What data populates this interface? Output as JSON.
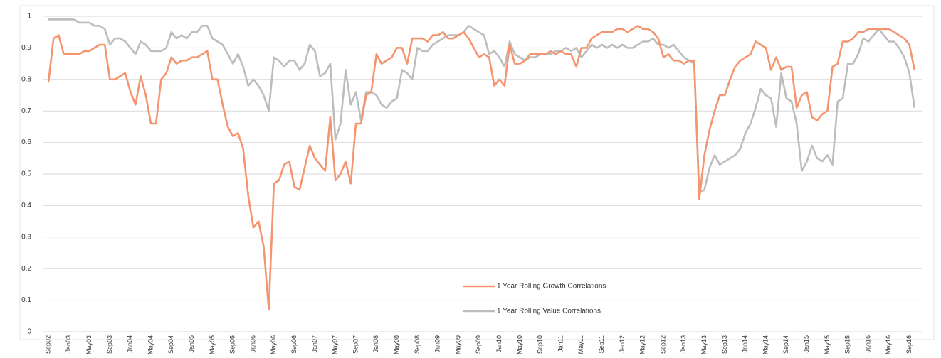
{
  "chart_data": {
    "type": "line",
    "categories": [
      "Sep02",
      null,
      null,
      null,
      "Jan03",
      null,
      null,
      null,
      "May03",
      null,
      null,
      null,
      "Sep03",
      null,
      null,
      null,
      "Jan04",
      null,
      null,
      null,
      "May04",
      null,
      null,
      null,
      "Sep04",
      null,
      null,
      null,
      "Jan05",
      null,
      null,
      null,
      "May05",
      null,
      null,
      null,
      "Sep05",
      null,
      null,
      null,
      "Jan06",
      null,
      null,
      null,
      "May06",
      null,
      null,
      null,
      "Sep06",
      null,
      null,
      null,
      "Jan07",
      null,
      null,
      null,
      "May07",
      null,
      null,
      null,
      "Sep07",
      null,
      null,
      null,
      "Jan08",
      null,
      null,
      null,
      "May08",
      null,
      null,
      null,
      "Sep08",
      null,
      null,
      null,
      "Jan09",
      null,
      null,
      null,
      "May09",
      null,
      null,
      null,
      "Sep09",
      null,
      null,
      null,
      "Jan10",
      null,
      null,
      null,
      "May10",
      null,
      null,
      null,
      "Sep10",
      null,
      null,
      null,
      "Jan11",
      null,
      null,
      null,
      "May11",
      null,
      null,
      null,
      "Sep11",
      null,
      null,
      null,
      "Jan12",
      null,
      null,
      null,
      "May12",
      null,
      null,
      null,
      "Sep12",
      null,
      null,
      null,
      "Jan13",
      null,
      null,
      null,
      "May13",
      null,
      null,
      null,
      "Sep13",
      null,
      null,
      null,
      "Jan14",
      null,
      null,
      null,
      "May14",
      null,
      null,
      null,
      "Sep14",
      null,
      null,
      null,
      "Jan15",
      null,
      null,
      null,
      "May15",
      null,
      null,
      null,
      "Sep15",
      null,
      null,
      null,
      "Jan16",
      null,
      null,
      null,
      "May16",
      null,
      null,
      null,
      "Sep16",
      null
    ],
    "series": [
      {
        "name": "1 Year Rolling Growth Correlations",
        "color": "#f4956f",
        "values": [
          0.79,
          0.93,
          0.94,
          0.88,
          0.88,
          0.88,
          0.88,
          0.89,
          0.89,
          0.9,
          0.91,
          0.91,
          0.8,
          0.8,
          0.81,
          0.82,
          0.76,
          0.72,
          0.81,
          0.75,
          0.66,
          0.66,
          0.8,
          0.82,
          0.87,
          0.85,
          0.86,
          0.86,
          0.87,
          0.87,
          0.88,
          0.89,
          0.8,
          0.8,
          0.72,
          0.65,
          0.62,
          0.63,
          0.58,
          0.43,
          0.33,
          0.35,
          0.27,
          0.07,
          0.47,
          0.48,
          0.53,
          0.54,
          0.46,
          0.45,
          0.52,
          0.59,
          0.55,
          0.53,
          0.51,
          0.68,
          0.48,
          0.5,
          0.54,
          0.47,
          0.66,
          0.66,
          0.75,
          0.76,
          0.88,
          0.85,
          0.86,
          0.87,
          0.9,
          0.9,
          0.85,
          0.93,
          0.93,
          0.93,
          0.92,
          0.94,
          0.94,
          0.95,
          0.93,
          0.93,
          0.94,
          0.95,
          0.93,
          0.9,
          0.87,
          0.88,
          0.87,
          0.78,
          0.8,
          0.78,
          0.91,
          0.85,
          0.85,
          0.86,
          0.88,
          0.88,
          0.88,
          0.88,
          0.89,
          0.88,
          0.89,
          0.88,
          0.88,
          0.84,
          0.9,
          0.9,
          0.93,
          0.94,
          0.95,
          0.95,
          0.95,
          0.96,
          0.96,
          0.95,
          0.96,
          0.97,
          0.96,
          0.96,
          0.95,
          0.93,
          0.87,
          0.88,
          0.86,
          0.86,
          0.85,
          0.86,
          0.86,
          0.42,
          0.56,
          0.64,
          0.7,
          0.75,
          0.75,
          0.8,
          0.84,
          0.86,
          0.87,
          0.88,
          0.92,
          0.91,
          0.9,
          0.83,
          0.87,
          0.83,
          0.84,
          0.84,
          0.71,
          0.75,
          0.76,
          0.68,
          0.67,
          0.69,
          0.7,
          0.84,
          0.85,
          0.92,
          0.92,
          0.93,
          0.95,
          0.95,
          0.96,
          0.96,
          0.96,
          0.96,
          0.96,
          0.95,
          0.94,
          0.93,
          0.91,
          0.83
        ]
      },
      {
        "name": "1 Year Rolling Value Correlations",
        "color": "#bdbdbd",
        "values": [
          0.99,
          0.99,
          0.99,
          0.99,
          0.99,
          0.99,
          0.98,
          0.98,
          0.98,
          0.97,
          0.97,
          0.96,
          0.91,
          0.93,
          0.93,
          0.92,
          0.9,
          0.88,
          0.92,
          0.91,
          0.89,
          0.89,
          0.89,
          0.9,
          0.95,
          0.93,
          0.94,
          0.93,
          0.95,
          0.95,
          0.97,
          0.97,
          0.93,
          0.92,
          0.91,
          0.88,
          0.85,
          0.88,
          0.84,
          0.78,
          0.8,
          0.78,
          0.75,
          0.7,
          0.87,
          0.86,
          0.84,
          0.86,
          0.86,
          0.83,
          0.85,
          0.91,
          0.89,
          0.81,
          0.82,
          0.85,
          0.61,
          0.66,
          0.83,
          0.72,
          0.76,
          0.67,
          0.76,
          0.76,
          0.75,
          0.72,
          0.71,
          0.73,
          0.74,
          0.83,
          0.82,
          0.8,
          0.9,
          0.89,
          0.89,
          0.91,
          0.92,
          0.93,
          0.94,
          0.94,
          0.94,
          0.95,
          0.97,
          0.96,
          0.95,
          0.94,
          0.88,
          0.89,
          0.87,
          0.84,
          0.92,
          0.88,
          0.87,
          0.86,
          0.87,
          0.87,
          0.88,
          0.88,
          0.88,
          0.89,
          0.89,
          0.9,
          0.89,
          0.9,
          0.87,
          0.89,
          0.91,
          0.9,
          0.91,
          0.9,
          0.91,
          0.9,
          0.91,
          0.9,
          0.9,
          0.91,
          0.92,
          0.92,
          0.93,
          0.91,
          0.91,
          0.9,
          0.91,
          0.89,
          0.87,
          0.86,
          0.85,
          0.44,
          0.45,
          0.52,
          0.56,
          0.53,
          0.54,
          0.55,
          0.56,
          0.58,
          0.63,
          0.66,
          0.71,
          0.77,
          0.75,
          0.74,
          0.65,
          0.82,
          0.74,
          0.73,
          0.66,
          0.51,
          0.54,
          0.59,
          0.55,
          0.54,
          0.56,
          0.53,
          0.73,
          0.74,
          0.85,
          0.85,
          0.88,
          0.93,
          0.92,
          0.94,
          0.96,
          0.94,
          0.92,
          0.92,
          0.9,
          0.87,
          0.82,
          0.71
        ]
      }
    ],
    "ylim": [
      0,
      1
    ],
    "yticks": [
      0,
      0.1,
      0.2,
      0.3,
      0.4,
      0.5,
      0.6,
      0.7,
      0.8,
      0.9,
      1
    ],
    "grid": true,
    "legend_position": "lower center"
  }
}
